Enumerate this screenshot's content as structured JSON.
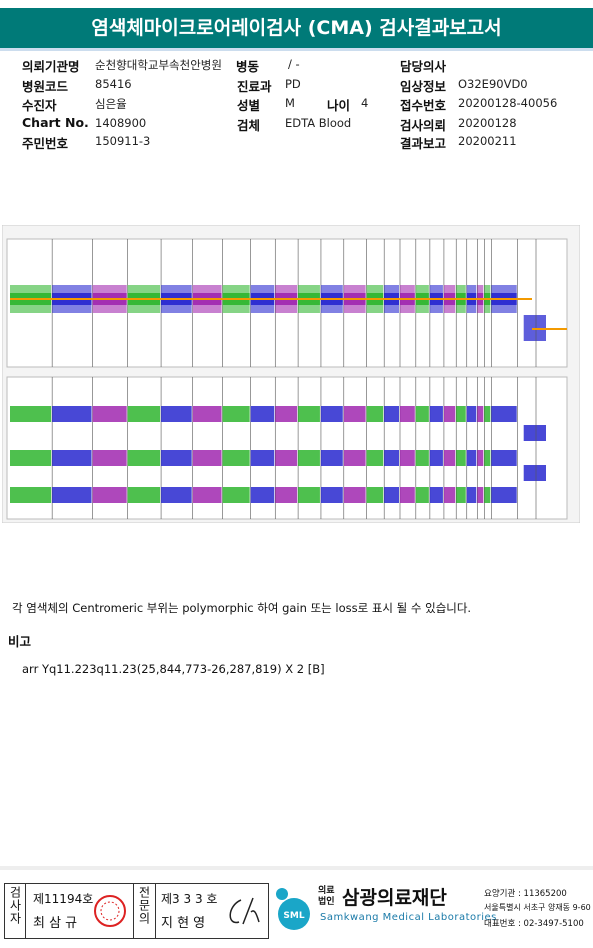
{
  "header": {
    "title": "염색체마이크로어레이검사 (CMA) 검사결과보고서"
  },
  "info": {
    "institution_label": "의뢰기관명",
    "institution": "순천향대학교부속천안병원",
    "ward_label": "병동",
    "ward": "/ -",
    "doctor_label": "담당의사",
    "hospital_code_label": "병원코드",
    "hospital_code": "85416",
    "department_label": "진료과",
    "department": "PD",
    "clinical_label": "임상정보",
    "clinical": "O32E90VD0",
    "patient_label": "수진자",
    "patient": "심은율",
    "sex_label": "성별",
    "sex": "M",
    "age_label": "나이",
    "age": "4",
    "receipt_label": "접수번호",
    "receipt": "20200128-40056",
    "chart_label": "Chart No.",
    "chart": "1408900",
    "specimen_label": "검체",
    "specimen": "EDTA Blood",
    "request_label": "검사의뢰",
    "request": "20200128",
    "id_label": "주민번호",
    "id": "150911-3",
    "report_label": "결과보고",
    "report": "20200211"
  },
  "note": "각 염색체의 Centromeric 부위는 polymorphic 하여 gain 또는 loss로 표시 될 수 있습니다.",
  "remarks_label": "비고",
  "remarks": "arr Yq11.223q11.23(25,844,773-26,287,819) X 2 [B]",
  "footer": {
    "examiner_label": "검사자",
    "examiner_no": "제11194호",
    "examiner": "최 삼 규",
    "specialist_label": "전문의",
    "specialist_no": "제3 3 3 호",
    "specialist": "지 현 영",
    "logo": "SML",
    "corp_label": "의료\n법인",
    "org": "삼광의료재단",
    "org_en": "Samkwang Medical Laboratories",
    "code": "요양기관 : 11365200",
    "address": "서울특별시 서초구 양재동 9-60",
    "phone": "대표번호 : 02-3497-5100"
  }
}
